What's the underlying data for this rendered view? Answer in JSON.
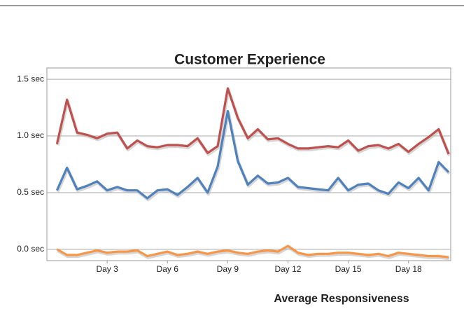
{
  "chart_data": {
    "type": "line",
    "title": "Customer Experience",
    "annotation": "Average Responsiveness",
    "x": [
      0.5,
      1,
      1.5,
      2,
      2.5,
      3,
      3.5,
      4,
      4.5,
      5,
      5.5,
      6,
      6.5,
      7,
      7.5,
      8,
      8.5,
      9,
      9.5,
      10,
      10.5,
      11,
      11.5,
      12,
      12.5,
      13,
      13.5,
      14,
      14.5,
      15,
      15.5,
      16,
      16.5,
      17,
      17.5,
      18,
      18.5,
      19,
      19.5,
      20
    ],
    "series": [
      {
        "color": "#c0504d",
        "values": [
          0.93,
          1.32,
          1.03,
          1.01,
          0.98,
          1.02,
          1.03,
          0.89,
          0.96,
          0.91,
          0.9,
          0.92,
          0.92,
          0.91,
          0.98,
          0.85,
          0.91,
          1.42,
          1.16,
          0.98,
          1.06,
          0.97,
          0.98,
          0.93,
          0.89,
          0.89,
          0.9,
          0.91,
          0.9,
          0.96,
          0.87,
          0.91,
          0.92,
          0.89,
          0.93,
          0.86,
          0.93,
          0.99,
          1.06,
          0.84
        ]
      },
      {
        "color": "#4f81bd",
        "values": [
          0.52,
          0.72,
          0.53,
          0.56,
          0.6,
          0.52,
          0.55,
          0.52,
          0.52,
          0.45,
          0.52,
          0.53,
          0.48,
          0.55,
          0.63,
          0.5,
          0.73,
          1.22,
          0.78,
          0.57,
          0.65,
          0.58,
          0.59,
          0.63,
          0.55,
          0.54,
          0.53,
          0.52,
          0.63,
          0.52,
          0.57,
          0.58,
          0.52,
          0.49,
          0.59,
          0.54,
          0.63,
          0.52,
          0.77,
          0.68
        ]
      },
      {
        "color": "#f79646",
        "values": [
          0.0,
          -0.05,
          -0.05,
          -0.03,
          -0.01,
          -0.03,
          -0.02,
          -0.02,
          -0.01,
          -0.06,
          -0.04,
          -0.02,
          -0.05,
          -0.04,
          -0.02,
          -0.04,
          -0.02,
          -0.01,
          -0.03,
          -0.04,
          -0.02,
          -0.01,
          -0.02,
          0.03,
          -0.03,
          -0.05,
          -0.04,
          -0.04,
          -0.03,
          -0.03,
          -0.04,
          -0.05,
          -0.04,
          -0.06,
          -0.03,
          -0.04,
          -0.05,
          -0.06,
          -0.06,
          -0.07
        ]
      }
    ],
    "xlim": [
      0,
      20.1
    ],
    "xticks": [
      {
        "value": 3,
        "label": "Day 3"
      },
      {
        "value": 6,
        "label": "Day 6"
      },
      {
        "value": 9,
        "label": "Day 9"
      },
      {
        "value": 12,
        "label": "Day 12"
      },
      {
        "value": 15,
        "label": "Day 15"
      },
      {
        "value": 18,
        "label": "Day 18"
      }
    ],
    "ylim": [
      -0.1,
      1.6
    ],
    "yticks": [
      {
        "value": 0,
        "label": "0.0 sec"
      },
      {
        "value": 0.5,
        "label": "0.5 sec"
      },
      {
        "value": 1.0,
        "label": "1.0 sec"
      },
      {
        "value": 1.5,
        "label": "1.5 sec"
      }
    ],
    "grid": true
  }
}
